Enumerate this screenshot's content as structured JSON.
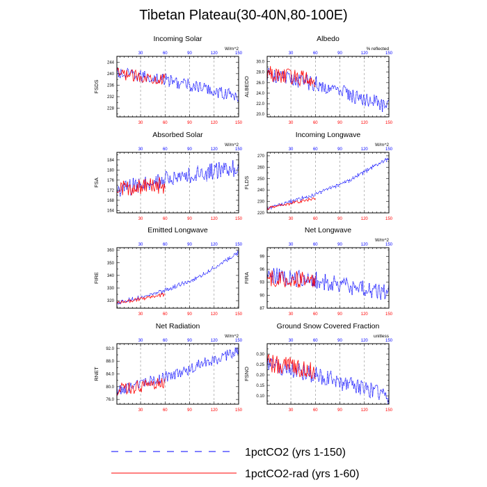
{
  "figure": {
    "title": "Tibetan Plateau(30-40N,80-100E)",
    "legend": [
      {
        "label": "1pctCO2 (yrs 1-150)",
        "color": "#0000ff",
        "style": "dashed"
      },
      {
        "label": "1pctCO2-rad (yrs 1-60)",
        "color": "#ff0000",
        "style": "solid"
      }
    ],
    "colors": {
      "series_150": "#0000ff",
      "series_60": "#ff0000",
      "top_ticks": "#0000ff",
      "bottom_ticks": "#ff0000",
      "grid": "#888888"
    }
  },
  "chart_data": [
    {
      "type": "line",
      "title": "Incoming Solar",
      "ylabel": "FSDS",
      "units": "W/m^2",
      "xlim": [
        1,
        150
      ],
      "ylim": [
        225,
        246
      ],
      "xticks": [
        30,
        60,
        90,
        120,
        150
      ],
      "yticks": [
        228,
        232,
        236,
        240,
        244
      ],
      "grid_x": [
        30,
        60,
        90,
        120
      ],
      "series": [
        {
          "name": "1pctCO2 (yrs 1-150)",
          "x_start": 1,
          "trend": [
            [
              1,
              240
            ],
            [
              60,
              238
            ],
            [
              150,
              232
            ]
          ],
          "noise": 2.2,
          "n": 150
        },
        {
          "name": "1pctCO2-rad (yrs 1-60)",
          "x_start": 1,
          "trend": [
            [
              1,
              240
            ],
            [
              60,
              238
            ]
          ],
          "noise": 2.0,
          "n": 60
        }
      ]
    },
    {
      "type": "line",
      "title": "Albedo",
      "ylabel": "ALBEDO",
      "units": "% reflected",
      "xlim": [
        1,
        150
      ],
      "ylim": [
        19.5,
        31
      ],
      "xticks": [
        30,
        60,
        90,
        120,
        150
      ],
      "yticks": [
        20.0,
        22.0,
        24.0,
        26.0,
        28.0,
        30.0
      ],
      "yticks_format": 1,
      "grid_x": [
        30,
        60,
        90,
        120
      ],
      "series": [
        {
          "name": "1pctCO2 (yrs 1-150)",
          "x_start": 1,
          "trend": [
            [
              1,
              27.5
            ],
            [
              60,
              25.8
            ],
            [
              150,
              21.5
            ]
          ],
          "noise": 1.5,
          "n": 150
        },
        {
          "name": "1pctCO2-rad (yrs 1-60)",
          "x_start": 1,
          "trend": [
            [
              1,
              27.8
            ],
            [
              60,
              26.5
            ]
          ],
          "noise": 1.6,
          "n": 60
        }
      ]
    },
    {
      "type": "line",
      "title": "Absorbed Solar",
      "ylabel": "FSA",
      "units": "W/m^2",
      "xlim": [
        1,
        150
      ],
      "ylim": [
        163,
        187
      ],
      "xticks": [
        30,
        60,
        90,
        120,
        150
      ],
      "yticks": [
        164,
        168,
        172,
        176,
        180,
        184
      ],
      "grid_x": [
        30,
        60,
        90,
        120
      ],
      "series": [
        {
          "name": "1pctCO2 (yrs 1-150)",
          "x_start": 1,
          "trend": [
            [
              1,
              172
            ],
            [
              60,
              176
            ],
            [
              150,
              181
            ]
          ],
          "noise": 3.5,
          "n": 150
        },
        {
          "name": "1pctCO2-rad (yrs 1-60)",
          "x_start": 1,
          "trend": [
            [
              1,
              172
            ],
            [
              60,
              174
            ]
          ],
          "noise": 3.5,
          "n": 60
        }
      ]
    },
    {
      "type": "line",
      "title": "Incoming Longwave",
      "ylabel": "FLDS",
      "units": "W/m^2",
      "xlim": [
        1,
        150
      ],
      "ylim": [
        220,
        273
      ],
      "xticks": [
        30,
        60,
        90,
        120,
        150
      ],
      "yticks": [
        220,
        230,
        240,
        250,
        260,
        270
      ],
      "grid_x": [
        30,
        60,
        90,
        120
      ],
      "series": [
        {
          "name": "1pctCO2 (yrs 1-150)",
          "x_start": 1,
          "trend": [
            [
              1,
              224
            ],
            [
              60,
              236
            ],
            [
              100,
              248
            ],
            [
              150,
              268
            ]
          ],
          "noise": 1.5,
          "n": 150
        },
        {
          "name": "1pctCO2-rad (yrs 1-60)",
          "x_start": 1,
          "trend": [
            [
              1,
              224
            ],
            [
              60,
              233
            ]
          ],
          "noise": 1.5,
          "n": 60
        }
      ]
    },
    {
      "type": "line",
      "title": "Emitted Longwave",
      "ylabel": "FIRE",
      "units": "",
      "xlim": [
        1,
        150
      ],
      "ylim": [
        314,
        362
      ],
      "xticks": [
        30,
        60,
        90,
        120,
        150
      ],
      "yticks": [
        320,
        330,
        340,
        350,
        360
      ],
      "grid_x": [
        30,
        60,
        90,
        120
      ],
      "series": [
        {
          "name": "1pctCO2 (yrs 1-150)",
          "x_start": 1,
          "trend": [
            [
              1,
              318
            ],
            [
              60,
              328
            ],
            [
              100,
              338
            ],
            [
              150,
              358
            ]
          ],
          "noise": 1.6,
          "n": 150
        },
        {
          "name": "1pctCO2-rad (yrs 1-60)",
          "x_start": 1,
          "trend": [
            [
              1,
              318
            ],
            [
              60,
              325
            ]
          ],
          "noise": 1.6,
          "n": 60
        }
      ]
    },
    {
      "type": "line",
      "title": "Net Longwave",
      "ylabel": "FIRA",
      "units": "W/m^2",
      "xlim": [
        1,
        150
      ],
      "ylim": [
        87,
        101
      ],
      "xticks": [
        30,
        60,
        90,
        120,
        150
      ],
      "yticks": [
        87,
        90,
        93,
        96,
        99
      ],
      "grid_x": [
        30,
        60,
        90,
        120
      ],
      "series": [
        {
          "name": "1pctCO2 (yrs 1-150)",
          "x_start": 1,
          "trend": [
            [
              1,
              94.5
            ],
            [
              60,
              93.5
            ],
            [
              150,
              90.5
            ]
          ],
          "noise": 2.0,
          "n": 150
        },
        {
          "name": "1pctCO2-rad (yrs 1-60)",
          "x_start": 1,
          "trend": [
            [
              1,
              94
            ],
            [
              60,
              93.5
            ]
          ],
          "noise": 2.0,
          "n": 60
        }
      ]
    },
    {
      "type": "line",
      "title": "Net Radiation",
      "ylabel": "RNET",
      "units": "W/m^2",
      "xlim": [
        1,
        150
      ],
      "ylim": [
        74.5,
        93.5
      ],
      "xticks": [
        30,
        60,
        90,
        120,
        150
      ],
      "yticks": [
        76.0,
        80.0,
        84.0,
        88.0,
        92.0
      ],
      "yticks_format": 1,
      "grid_x": [
        30,
        60,
        90,
        120
      ],
      "series": [
        {
          "name": "1pctCO2 (yrs 1-150)",
          "x_start": 1,
          "trend": [
            [
              1,
              78.5
            ],
            [
              60,
              83
            ],
            [
              150,
              91
            ]
          ],
          "noise": 1.8,
          "n": 150
        },
        {
          "name": "1pctCO2-rad (yrs 1-60)",
          "x_start": 1,
          "trend": [
            [
              1,
              79
            ],
            [
              60,
              81
            ]
          ],
          "noise": 2.0,
          "n": 60
        }
      ]
    },
    {
      "type": "line",
      "title": "Ground Snow Covered Fraction",
      "ylabel": "FSNO",
      "units": "unitless",
      "xlim": [
        1,
        150
      ],
      "ylim": [
        0.06,
        0.35
      ],
      "xticks": [
        30,
        60,
        90,
        120,
        150
      ],
      "yticks": [
        0.1,
        0.15,
        0.2,
        0.25,
        0.3
      ],
      "yticks_format": 2,
      "grid_x": [
        30,
        60,
        90,
        120
      ],
      "series": [
        {
          "name": "1pctCO2 (yrs 1-150)",
          "x_start": 1,
          "trend": [
            [
              1,
              0.25
            ],
            [
              60,
              0.2
            ],
            [
              150,
              0.1
            ]
          ],
          "noise": 0.04,
          "n": 150
        },
        {
          "name": "1pctCO2-rad (yrs 1-60)",
          "x_start": 1,
          "trend": [
            [
              1,
              0.26
            ],
            [
              60,
              0.22
            ]
          ],
          "noise": 0.045,
          "n": 60
        }
      ]
    }
  ]
}
